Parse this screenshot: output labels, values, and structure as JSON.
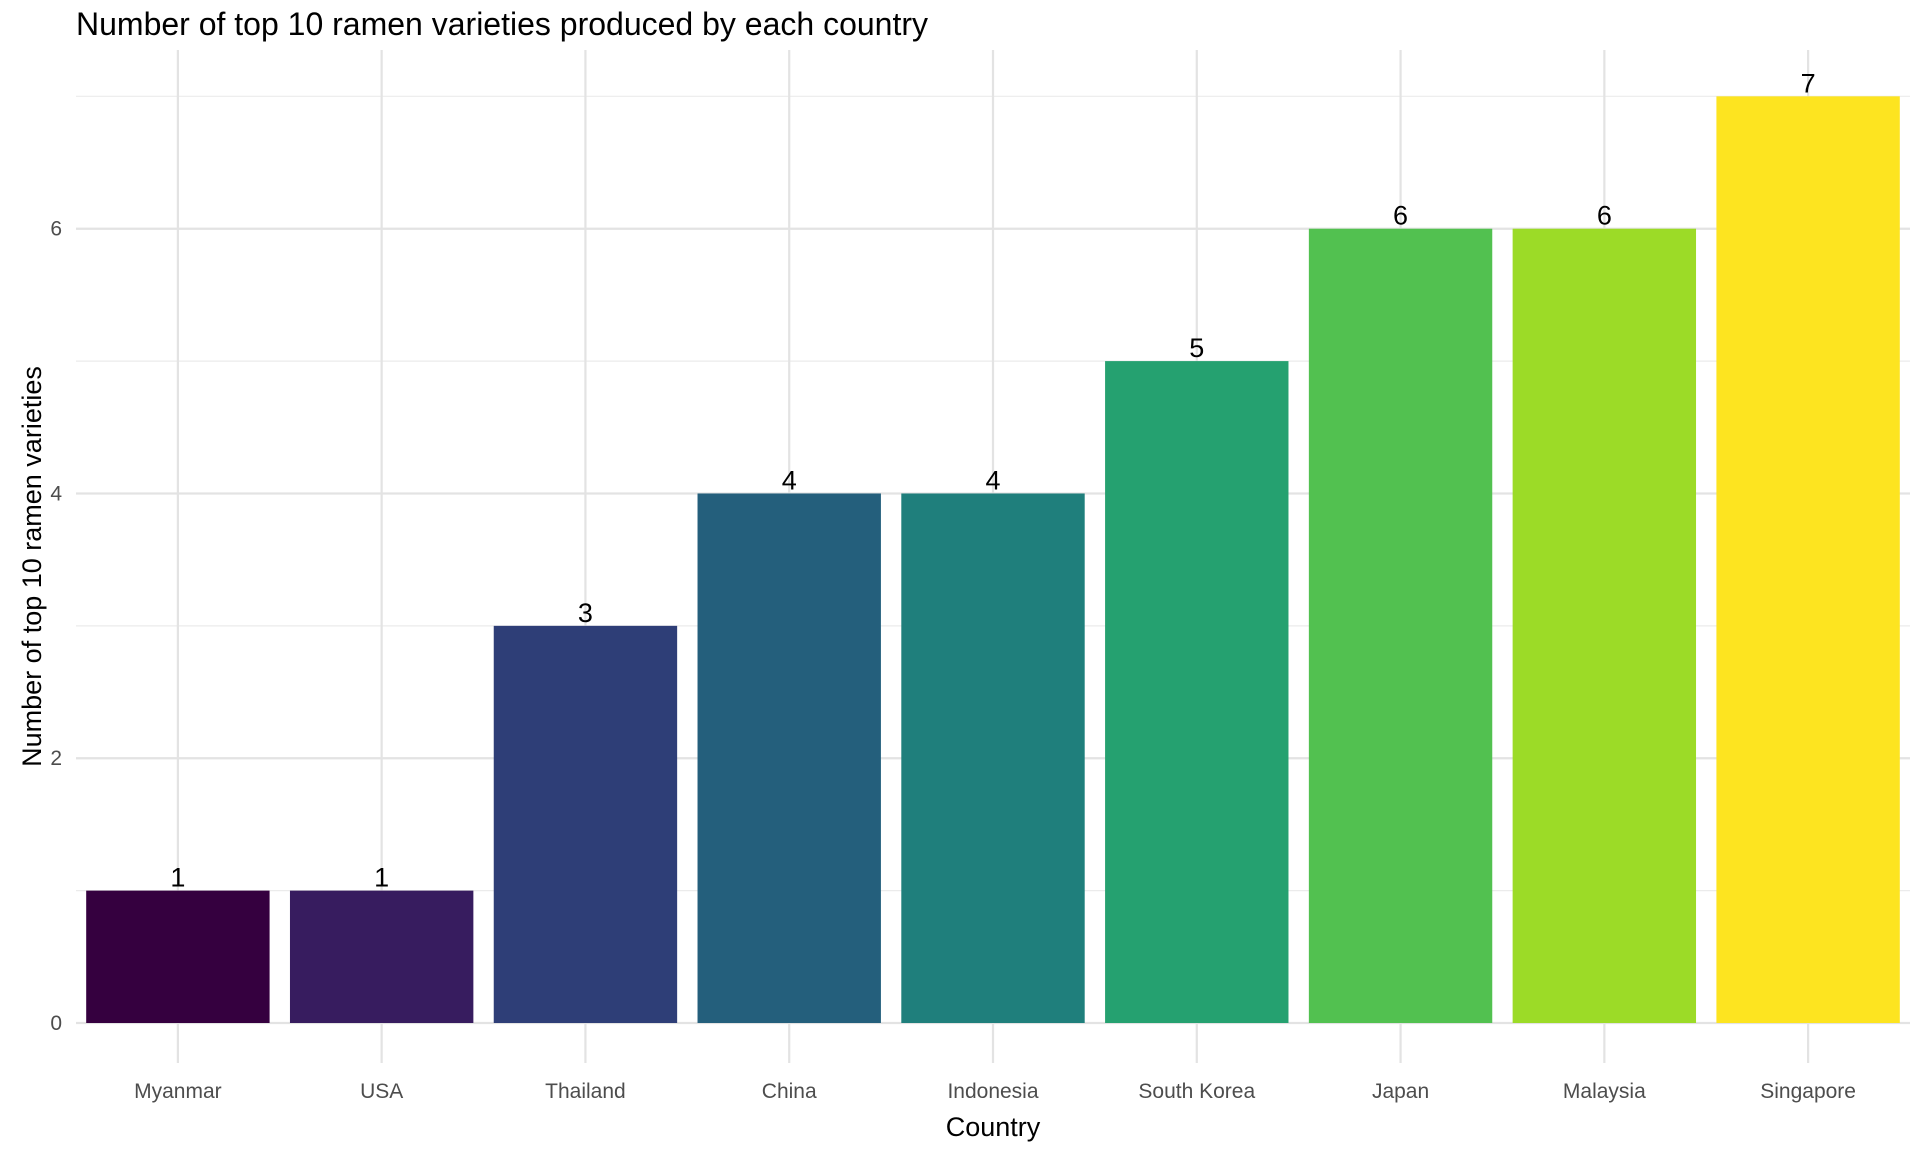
{
  "chart_data": {
    "type": "bar",
    "title": "Number of top 10 ramen varieties produced by each country",
    "xlabel": "Country",
    "ylabel": "Number of top 10 ramen varieties",
    "categories": [
      "Myanmar",
      "USA",
      "Thailand",
      "China",
      "Indonesia",
      "South Korea",
      "Japan",
      "Malaysia",
      "Singapore"
    ],
    "values": [
      1,
      1,
      3,
      4,
      4,
      5,
      6,
      6,
      7
    ],
    "colors": [
      "#35003f",
      "#371c5f",
      "#2e3e77",
      "#245f7c",
      "#1f7f7c",
      "#25a170",
      "#52c150",
      "#9cdb27",
      "#fde420"
    ],
    "ylim": [
      0,
      7.35
    ],
    "yticks": [
      0,
      2,
      4,
      6
    ],
    "grid": true,
    "legend": "none"
  }
}
